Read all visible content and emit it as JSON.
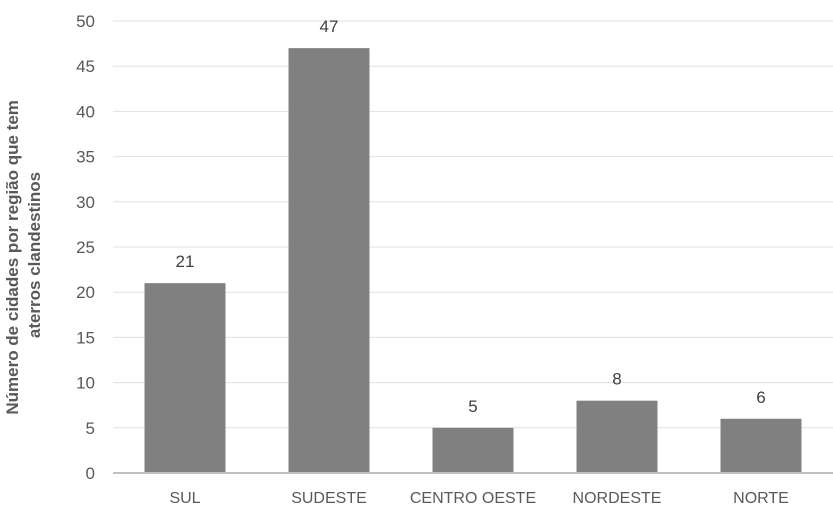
{
  "chart_data": {
    "type": "bar",
    "title": "",
    "xlabel": "",
    "ylabel_lines": [
      "Número de cidades por região que tem",
      "aterros clandestinos"
    ],
    "categories": [
      "SUL",
      "SUDESTE",
      "CENTRO  OESTE",
      "NORDESTE",
      "NORTE"
    ],
    "values": [
      21,
      47,
      5,
      8,
      6
    ],
    "ylim": [
      0,
      50
    ],
    "yticks": [
      0,
      5,
      10,
      15,
      20,
      25,
      30,
      35,
      40,
      45,
      50
    ],
    "grid": true,
    "legend": "none",
    "bar_color": "#808080",
    "grid_color": "#e0e0e0",
    "axis_color": "#bfbfbf"
  }
}
